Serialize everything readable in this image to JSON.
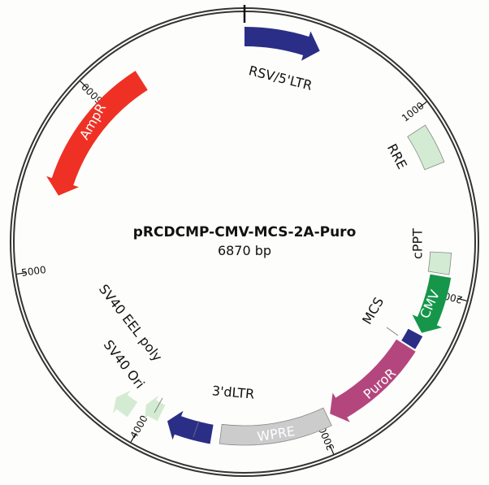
{
  "plasmid": {
    "name": "pRCDCMP-CMV-MCS-2A-Puro",
    "size_label": "6870 bp",
    "length_bp": 6870
  },
  "ticks": [
    "1000",
    "2000",
    "3000",
    "4000",
    "5000",
    "6000"
  ],
  "features": [
    {
      "label": "RSV/5'LTR",
      "start": 0,
      "end": 410,
      "shape": "arrow",
      "direction": "cw",
      "color": "#2b2e86"
    },
    {
      "label": "RRE",
      "start": 1090,
      "end": 1300,
      "shape": "box",
      "color": "#d3ebd3"
    },
    {
      "label": "cPPT",
      "start": 1775,
      "end": 1890,
      "shape": "box",
      "color": "#d3ebd3"
    },
    {
      "label": "CMV",
      "start": 1905,
      "end": 2235,
      "shape": "arrow",
      "direction": "cw",
      "color": "#15964a"
    },
    {
      "label": "MCS",
      "start": 2250,
      "end": 2330,
      "shape": "box",
      "color": "#2b2e86"
    },
    {
      "label": "PuroR",
      "start": 2340,
      "end": 2930,
      "shape": "arrow",
      "direction": "cw",
      "color": "#b4467e"
    },
    {
      "label": "WPRE",
      "start": 2950,
      "end": 3570,
      "shape": "box",
      "color": "#cccccc"
    },
    {
      "label": "3'dLTR",
      "start": 3620,
      "end": 3880,
      "shape": "arrow",
      "direction": "cw",
      "color": "#2b2e86"
    },
    {
      "label": "SV40 Ori",
      "start": 3930,
      "end": 4030,
      "shape": "arrow",
      "direction": "cw",
      "color": "#d3ebd3"
    },
    {
      "label": "SV40 EEL poly",
      "start": 4080,
      "end": 4190,
      "shape": "arrow",
      "direction": "cw",
      "color": "#d3ebd3"
    },
    {
      "label": "AmpR",
      "start": 5420,
      "end": 6250,
      "shape": "arrow",
      "direction": "ccw",
      "color": "#ee3124"
    }
  ]
}
